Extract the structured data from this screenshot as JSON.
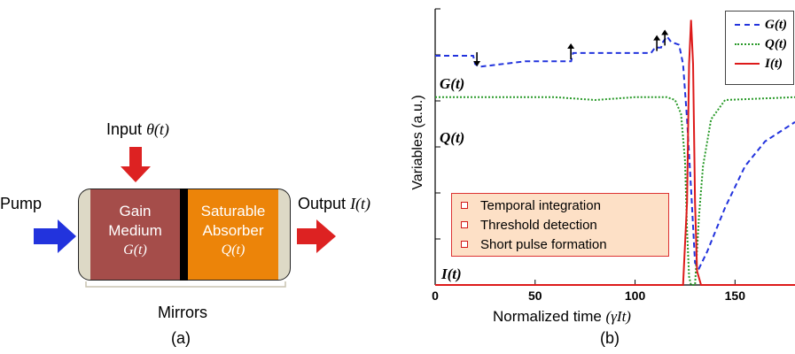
{
  "panel_a": {
    "input_label": "Input",
    "input_symbol": "θ(t)",
    "pump_label": "Pump",
    "output_label": "Output",
    "output_symbol": "I(t)",
    "gain_line1": "Gain",
    "gain_line2": "Medium",
    "gain_symbol": "G(t)",
    "abs_line1": "Saturable",
    "abs_line2": "Absorber",
    "abs_symbol": "Q(t)",
    "mirrors_label": "Mirrors",
    "caption": "(a)"
  },
  "panel_b": {
    "caption": "(b)",
    "ylabel": "Variables (a.u.)",
    "xlabel": "Normalized time",
    "xlabel_symbol": "(γIt)",
    "curve_labels": {
      "G": "G(t)",
      "Q": "Q(t)",
      "I": "I(t)"
    },
    "feature_box": [
      "Temporal integration",
      "Threshold detection",
      "Short pulse formation"
    ],
    "legend": [
      {
        "name": "G(t)",
        "color": "#2233dd",
        "style": "dashed"
      },
      {
        "name": "Q(t)",
        "color": "#2a9a2a",
        "style": "dotted"
      },
      {
        "name": "I(t)",
        "color": "#dd1a1a",
        "style": "solid"
      }
    ]
  },
  "colors": {
    "gain": "#a54d4a",
    "absorber": "#ec8409",
    "mirror": "#ddd9c6",
    "pump_arrow": "#2233dd",
    "red_arrow": "#dd2222"
  },
  "chart_data": {
    "type": "line",
    "xlabel": "Normalized time (γIt)",
    "ylabel": "Variables (a.u.)",
    "xlim": [
      0,
      180
    ],
    "x_ticks": [
      0,
      50,
      100,
      150
    ],
    "series": [
      {
        "name": "G(t)",
        "points": [
          [
            0,
            0.83
          ],
          [
            19,
            0.83
          ],
          [
            20,
            0.8
          ],
          [
            22,
            0.79
          ],
          [
            45,
            0.81
          ],
          [
            68,
            0.81
          ],
          [
            69,
            0.84
          ],
          [
            108,
            0.84
          ],
          [
            110,
            0.86
          ],
          [
            113,
            0.86
          ],
          [
            114,
            0.88
          ],
          [
            116,
            0.9
          ],
          [
            118,
            0.88
          ],
          [
            122,
            0.87
          ],
          [
            124,
            0.8
          ],
          [
            126,
            0.6
          ],
          [
            128,
            0.35
          ],
          [
            130,
            0.08
          ],
          [
            132,
            0.06
          ],
          [
            136,
            0.12
          ],
          [
            145,
            0.28
          ],
          [
            155,
            0.43
          ],
          [
            165,
            0.52
          ],
          [
            180,
            0.59
          ]
        ]
      },
      {
        "name": "Q(t)",
        "points": [
          [
            0,
            0.68
          ],
          [
            60,
            0.68
          ],
          [
            80,
            0.67
          ],
          [
            100,
            0.68
          ],
          [
            116,
            0.68
          ],
          [
            120,
            0.67
          ],
          [
            123,
            0.62
          ],
          [
            125,
            0.45
          ],
          [
            126,
            0.2
          ],
          [
            127,
            0.03
          ],
          [
            128,
            0.0
          ],
          [
            130,
            0.0
          ],
          [
            132,
            0.25
          ],
          [
            134,
            0.43
          ],
          [
            138,
            0.6
          ],
          [
            145,
            0.67
          ],
          [
            180,
            0.68
          ]
        ]
      },
      {
        "name": "I(t)",
        "points": [
          [
            0,
            0.0
          ],
          [
            124,
            0.0
          ],
          [
            126,
            0.3
          ],
          [
            127,
            0.8
          ],
          [
            128,
            0.96
          ],
          [
            129,
            0.8
          ],
          [
            130,
            0.3
          ],
          [
            131,
            0.05
          ],
          [
            133,
            0.0
          ],
          [
            180,
            0.0
          ]
        ]
      }
    ],
    "annotations": [
      "↓ at t≈20",
      "↑ at t≈68",
      "↑ at t≈110",
      "↑ at t≈114"
    ]
  }
}
